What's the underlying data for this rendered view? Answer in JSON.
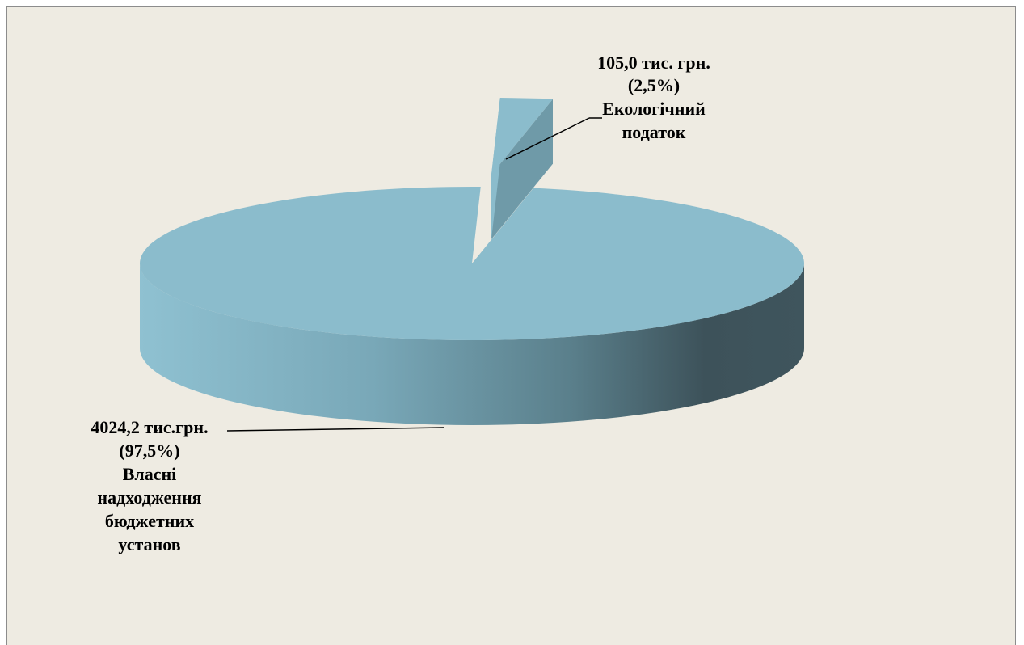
{
  "chart_data": {
    "type": "pie",
    "style": "3d-exploded",
    "title": "",
    "slices": [
      {
        "value_text": "4024,2  тис.грн.",
        "percent_text": "(97,5%)",
        "name_lines": [
          "Власні",
          "надходження",
          "бюджетних",
          "установ"
        ],
        "value": 4024.2,
        "percent": 97.5
      },
      {
        "value_text": "105,0 тис. грн.",
        "percent_text": "(2,5%)",
        "name_lines": [
          "Екологічний",
          "податок"
        ],
        "value": 105.0,
        "percent": 2.5
      }
    ],
    "colors": {
      "top": "#8bbccc",
      "side_light": "#8fc1d1",
      "side_dark": "#3d525a",
      "background": "#eeebe2",
      "leader": "#000000"
    },
    "legend": "none"
  }
}
